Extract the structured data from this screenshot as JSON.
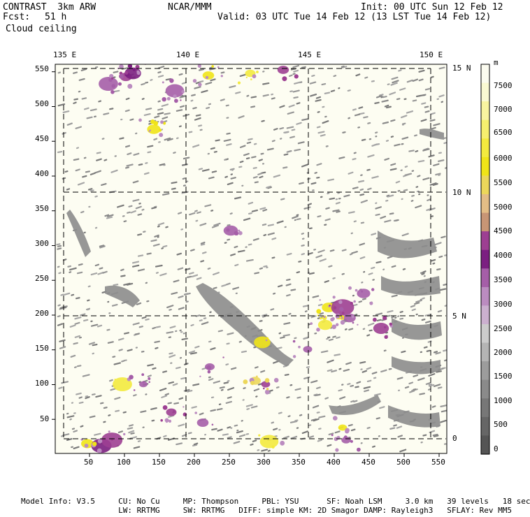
{
  "header": {
    "title_left": "CONTRAST  3km ARW",
    "title_center": "NCAR/MMM",
    "init": "Init: 00 UTC Sun 12 Feb 12",
    "fcst_label": "Fcst:",
    "fcst_value": "51 h",
    "valid": "Valid: 03 UTC Tue 14 Feb 12 (13 LST Tue 14 Feb 12)",
    "field_name": "Cloud ceiling"
  },
  "map": {
    "top_lon_labels": [
      "135 E",
      "140 E",
      "145 E",
      "150 E"
    ],
    "right_lat_labels": [
      "15 N",
      "10 N",
      "5 N",
      "0"
    ],
    "left_grid_labels": [
      "550",
      "500",
      "450",
      "400",
      "350",
      "300",
      "250",
      "200",
      "150",
      "100",
      "50"
    ],
    "bottom_grid_labels": [
      "50",
      "100",
      "150",
      "200",
      "250",
      "300",
      "350",
      "400",
      "450",
      "500",
      "550"
    ],
    "grid_extent": [
      1,
      560
    ],
    "plot_background": "#fdfdf2"
  },
  "colorbar": {
    "units": "m",
    "labels": [
      "7500",
      "7000",
      "6500",
      "6000",
      "5500",
      "5000",
      "4500",
      "4000",
      "3500",
      "3000",
      "2500",
      "2000",
      "1500",
      "1000",
      "500",
      "0"
    ],
    "colors": [
      "#fbfbef",
      "#faf9d2",
      "#f8f4a0",
      "#f6ef6e",
      "#f3ea3e",
      "#f0e418",
      "#ecd75a",
      "#e3bd86",
      "#c79575",
      "#9d3f92",
      "#7b1f81",
      "#a55ea8",
      "#bb8cc0",
      "#cbb0cf",
      "#cccccc",
      "#b4b4b4",
      "#9c9c9c",
      "#8a8a8a",
      "#777777",
      "#666666",
      "#555555"
    ]
  },
  "footer": {
    "line1": "Model Info: V3.5     CU: No Cu     MP: Thompson     PBL: YSU      SF: Noah LSM     3.0 km   39 levels   18 sec",
    "line2": "                     LW: RRTMG     SW: RRTMG   DIFF: simple KM: 2D Smagor DAMP: Rayleigh3   SFLAY: Rev MM5"
  }
}
